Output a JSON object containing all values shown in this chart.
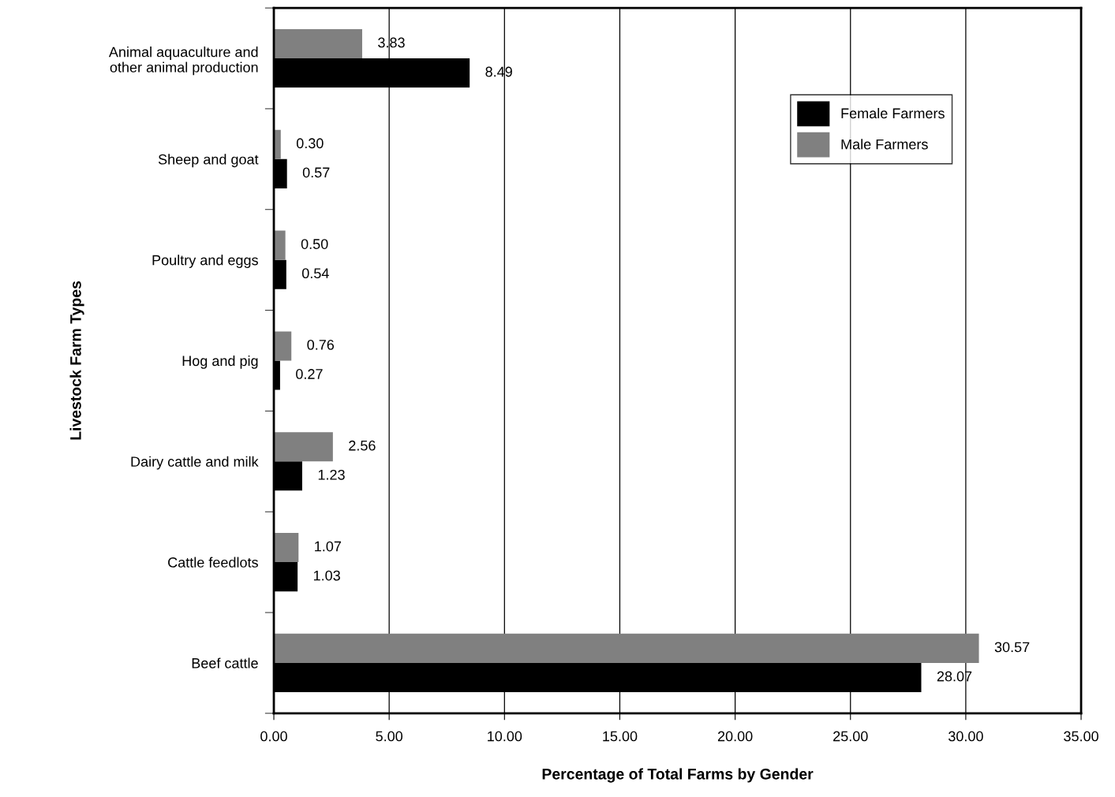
{
  "chart_data": {
    "type": "bar",
    "orientation": "horizontal",
    "xlabel": "Percentage of Total Farms by Gender",
    "ylabel": "Livestock Farm Types",
    "categories": [
      "Animal aquaculture and\nother animal production",
      "Sheep and goat",
      "Poultry and eggs",
      "Hog and pig",
      "Dairy cattle and milk",
      "Cattle feedlots",
      "Beef cattle"
    ],
    "series": [
      {
        "name": "Female Farmers",
        "color": "#000000",
        "values": [
          8.49,
          0.57,
          0.54,
          0.27,
          1.23,
          1.03,
          28.07
        ],
        "value_labels": [
          "8.49",
          "0.57",
          "0.54",
          "0.27",
          "1.23",
          "1.03",
          "28.07"
        ]
      },
      {
        "name": "Male Farmers",
        "color": "#808080",
        "values": [
          3.83,
          0.3,
          0.5,
          0.76,
          2.56,
          1.07,
          30.57
        ],
        "value_labels": [
          "3.83",
          "0.30",
          "0.50",
          "0.76",
          "2.56",
          "1.07",
          "30.57"
        ]
      }
    ],
    "xlim": [
      0,
      35
    ],
    "xticks": [
      {
        "value": 0,
        "label": "0.00"
      },
      {
        "value": 5,
        "label": "5.00"
      },
      {
        "value": 10,
        "label": "10.00"
      },
      {
        "value": 15,
        "label": "15.00"
      },
      {
        "value": 20,
        "label": "20.00"
      },
      {
        "value": 25,
        "label": "25.00"
      },
      {
        "value": 30,
        "label": "30.00"
      },
      {
        "value": 35,
        "label": "35.00"
      }
    ],
    "grid": "x",
    "legend": "top right"
  }
}
